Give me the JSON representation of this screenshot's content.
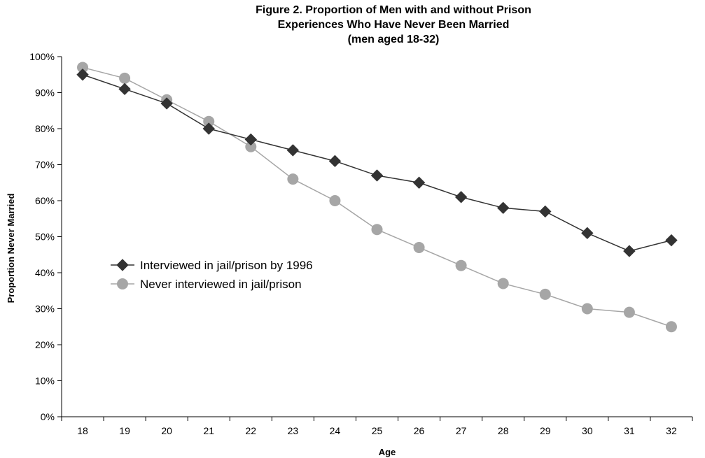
{
  "chart_data": {
    "type": "line",
    "title_lines": [
      "Figure 2. Proportion of Men with and without Prison",
      "Experiences Who Have Never Been Married",
      "(men aged 18-32)"
    ],
    "xlabel": "Age",
    "ylabel": "Proportion Never Married",
    "x": [
      "18",
      "19",
      "20",
      "21",
      "22",
      "23",
      "24",
      "25",
      "26",
      "27",
      "28",
      "29",
      "30",
      "31",
      "32"
    ],
    "ylim": [
      0,
      100
    ],
    "yticks": [
      "0%",
      "10%",
      "20%",
      "30%",
      "40%",
      "50%",
      "60%",
      "70%",
      "80%",
      "90%",
      "100%"
    ],
    "grid": false,
    "legend_position": "middle-left",
    "series": [
      {
        "name": "Interviewed in jail/prison by 1996",
        "marker": "diamond",
        "color": "#333333",
        "values": [
          95,
          91,
          87,
          80,
          77,
          74,
          71,
          67,
          65,
          61,
          58,
          57,
          51,
          46,
          49
        ]
      },
      {
        "name": "Never interviewed in jail/prison",
        "marker": "circle",
        "color": "#a6a6a6",
        "values": [
          97,
          94,
          88,
          82,
          75,
          66,
          60,
          52,
          47,
          42,
          37,
          34,
          30,
          29,
          25
        ]
      }
    ]
  }
}
